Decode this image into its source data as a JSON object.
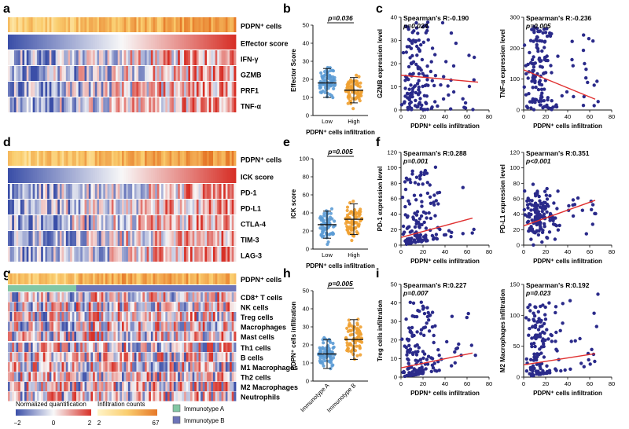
{
  "chart_data": {
    "panel_labels": [
      "a",
      "b",
      "c",
      "d",
      "e",
      "f",
      "g",
      "h",
      "i"
    ],
    "heatmaps": [
      {
        "panel": "a",
        "rows": [
          "PDPN⁺ cells",
          "Effector score",
          "IFN-γ",
          "GZMB",
          "PRF1",
          "TNF-α"
        ],
        "seed": 11
      },
      {
        "panel": "d",
        "rows": [
          "PDPN⁺ cells",
          "ICK score",
          "PD-1",
          "PD-L1",
          "CTLA-4",
          "TIM-3",
          "LAG-3"
        ],
        "seed": 23
      },
      {
        "panel": "g",
        "top_row": "PDPN⁺ cells",
        "group_split_fraction": 0.3,
        "block1": [
          "CD8⁺ T cells",
          "NK cells",
          "Treg cells",
          "Macrophages",
          "Mast cells"
        ],
        "block2": [
          "Th1 cells",
          "B cells",
          "M1 Macrophages",
          "Th2 cells",
          "M2 Macrophages",
          "Neutrophils"
        ],
        "seed": 37
      }
    ],
    "dotplots": [
      {
        "panel": "b",
        "type": "scatter",
        "ylabel": "Effector Score",
        "xlabel": "PDPN⁺ cells infiltration",
        "categories": [
          "Low",
          "High"
        ],
        "yticks": [
          "0",
          "10",
          "20",
          "30",
          "40",
          "50"
        ],
        "ylim": [
          0,
          50
        ],
        "means": [
          18,
          14
        ],
        "sds": [
          8,
          7
        ],
        "pvalue": "p=0.036",
        "rotate": false,
        "seed": 5
      },
      {
        "panel": "e",
        "type": "scatter",
        "ylabel": "ICK score",
        "xlabel": "PDPN⁺ cells infiltration",
        "categories": [
          "Low",
          "High"
        ],
        "yticks": [
          "0",
          "20",
          "40",
          "60",
          "80",
          "100"
        ],
        "ylim": [
          0,
          100
        ],
        "means": [
          27,
          33
        ],
        "sds": [
          15,
          17
        ],
        "pvalue": "p=0.005",
        "rotate": false,
        "seed": 7
      },
      {
        "panel": "h",
        "type": "scatter",
        "ylabel": "PDPN⁺ cells infiltration",
        "xlabel": "",
        "categories": [
          "Immunotype A",
          "Immunotype B"
        ],
        "yticks": [
          "0",
          "10",
          "20",
          "30",
          "40",
          "50"
        ],
        "ylim": [
          0,
          50
        ],
        "means": [
          15,
          23
        ],
        "sds": [
          8,
          11
        ],
        "pvalue": "p=0.005",
        "rotate": true,
        "seed": 9
      }
    ],
    "scatters": [
      {
        "type": "scatter",
        "ylabel": "GZMB expression level",
        "xlabel": "PDPN⁺ cells infiltration",
        "stat": "Spearman's R:-0.190",
        "pvalue": "p=0.024",
        "xticks": [
          "0",
          "20",
          "40",
          "60",
          "80"
        ],
        "yticks": [
          "0",
          "10",
          "20",
          "30",
          "40"
        ],
        "xlim": [
          0,
          80
        ],
        "ylim": [
          0,
          40
        ],
        "line": [
          [
            0,
            15
          ],
          [
            70,
            12
          ]
        ],
        "seed": 3,
        "yshape": "decay"
      },
      {
        "type": "scatter",
        "ylabel": "TNF-α expression level",
        "xlabel": "PDPN⁺ cells infiltration",
        "stat": "Spearman's R:-0.236",
        "pvalue": "p=0.005",
        "xticks": [
          "0",
          "20",
          "40",
          "60",
          "80"
        ],
        "yticks": [
          "0",
          "100",
          "200",
          "300"
        ],
        "xlim": [
          0,
          80
        ],
        "ylim": [
          0,
          300
        ],
        "line": [
          [
            0,
            130
          ],
          [
            65,
            35
          ]
        ],
        "seed": 4,
        "yshape": "spread"
      },
      {
        "type": "scatter",
        "ylabel": "PD-1 expression level",
        "xlabel": "PDPN⁺ cells infiltration",
        "stat": "Spearman's R:0.288",
        "pvalue": "p=0.001",
        "xticks": [
          "0",
          "20",
          "40",
          "60",
          "80"
        ],
        "yticks": [
          "0",
          "20",
          "40",
          "60",
          "80",
          "100",
          "120"
        ],
        "xlim": [
          0,
          80
        ],
        "ylim": [
          0,
          120
        ],
        "line": [
          [
            0,
            10
          ],
          [
            65,
            35
          ]
        ],
        "seed": 6,
        "yshape": "low"
      },
      {
        "type": "scatter",
        "ylabel": "PD-L1 expression level",
        "xlabel": "PDPN⁺ cells infiltration",
        "stat": "Spearman's R:0.351",
        "pvalue": "p<0.001",
        "xticks": [
          "0",
          "20",
          "40",
          "60",
          "80"
        ],
        "yticks": [
          "0",
          "20",
          "40",
          "60",
          "80",
          "100",
          "120"
        ],
        "xlim": [
          0,
          80
        ],
        "ylim": [
          0,
          120
        ],
        "line": [
          [
            0,
            25
          ],
          [
            65,
            58
          ]
        ],
        "seed": 8,
        "yshape": "mid"
      },
      {
        "type": "scatter",
        "ylabel": "Treg cells infiltration",
        "xlabel": "PDPN⁺ cells infiltration",
        "stat": "Spearman's R:0.227",
        "pvalue": "p=0.007",
        "xticks": [
          "0",
          "20",
          "40",
          "60",
          "80"
        ],
        "yticks": [
          "0",
          "10",
          "20",
          "30",
          "40",
          "50"
        ],
        "xlim": [
          0,
          80
        ],
        "ylim": [
          0,
          50
        ],
        "line": [
          [
            0,
            5
          ],
          [
            65,
            13
          ]
        ],
        "seed": 10,
        "yshape": "low"
      },
      {
        "type": "scatter",
        "ylabel": "M2 Macrophages infiltration",
        "xlabel": "PDPN⁺ cells infiltration",
        "stat": "Spearman's R:0.192",
        "pvalue": "p=0.023",
        "xticks": [
          "0",
          "20",
          "40",
          "60",
          "80"
        ],
        "yticks": [
          "0",
          "50",
          "100",
          "150"
        ],
        "xlim": [
          0,
          80
        ],
        "ylim": [
          0,
          150
        ],
        "line": [
          [
            0,
            20
          ],
          [
            65,
            38
          ]
        ],
        "seed": 12,
        "yshape": "low"
      }
    ],
    "legend": {
      "norm_title": "Normalized quantification",
      "norm_ticks": [
        "−2",
        "0",
        "2"
      ],
      "inf_title": "Infiltration counts",
      "inf_ticks": [
        "2",
        "67"
      ],
      "groups": [
        "Immunotype A",
        "Immunotype B"
      ],
      "group_colors": [
        "#82c7a4",
        "#6d74b8"
      ]
    },
    "colors": {
      "blue": "#3b4fa8",
      "red": "#d73027",
      "point": "#2a2a8a",
      "dotplot_blue": "#5b9bd5",
      "dotplot_orange": "#f0a030",
      "line": "#e03030"
    }
  }
}
